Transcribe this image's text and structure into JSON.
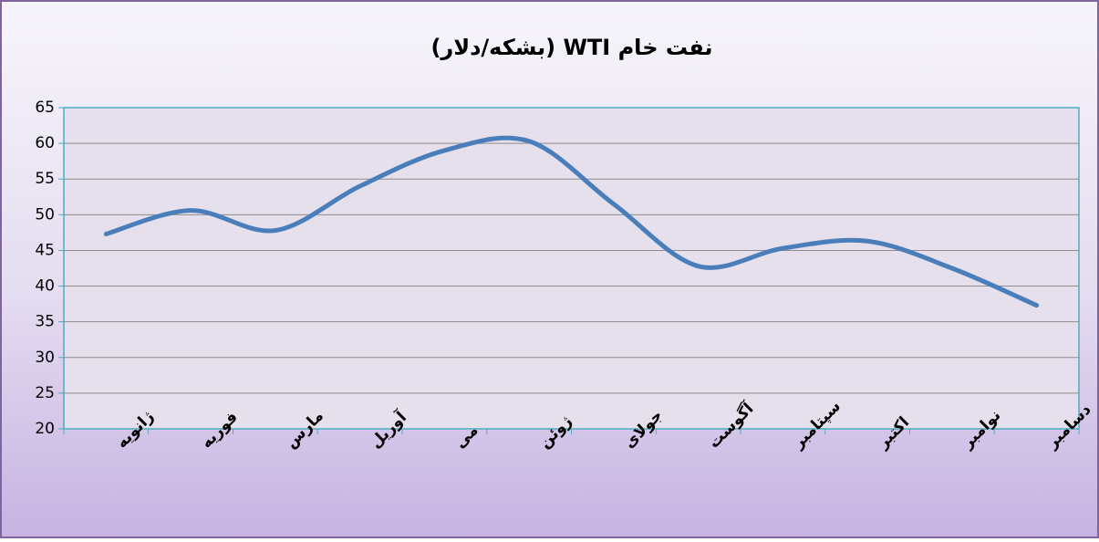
{
  "chart_data": {
    "type": "line",
    "title": "نفت خام WTI (بشکه/دلار)",
    "categories": [
      "ژانویه",
      "فوریه",
      "مارس",
      "آوریل",
      "می",
      "ژوئن",
      "جولای",
      "آگوست",
      "سپتامبر",
      "اکتبر",
      "نوامبر",
      "دسامبر"
    ],
    "values": [
      47.3,
      50.6,
      47.8,
      54,
      59,
      60.3,
      51.5,
      42.8,
      45.3,
      46.3,
      42.5,
      37.3
    ],
    "color": "#4a7ebb",
    "ylim": [
      20,
      65
    ],
    "yticks": [
      20,
      25,
      30,
      35,
      40,
      45,
      50,
      55,
      60,
      65
    ],
    "grid": true
  }
}
